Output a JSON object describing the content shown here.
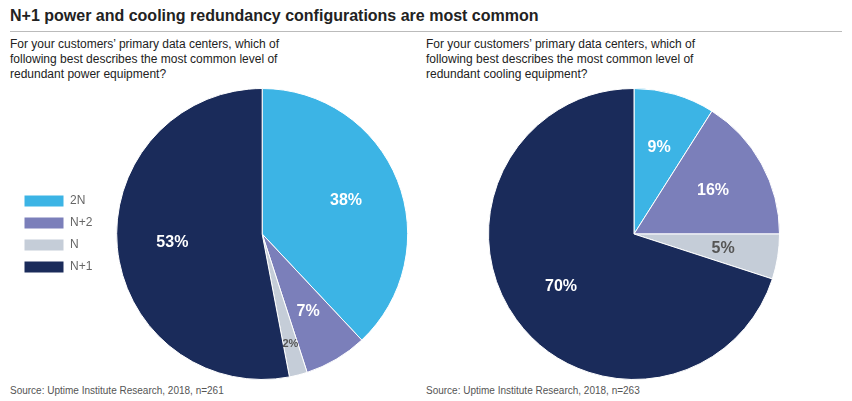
{
  "chart_data": [
    {
      "type": "pie",
      "title": "N+1 power and cooling redundancy configurations are most common",
      "subtitle": "For your customers’ primary data centers, which of\nfollowing best describes the most common level of\nredundant power equipment?",
      "annotations": [
        "Source: Uptime Institute Research, 2018, n=261"
      ],
      "categories": [
        "2N",
        "N+2",
        "N",
        "N+1"
      ],
      "values": [
        38,
        7,
        2,
        53
      ],
      "value_labels": [
        "38%",
        "7%",
        "2%",
        "53%"
      ],
      "colors": [
        "#3cb4e5",
        "#7b7fba",
        "#c5cdd8",
        "#1a2b5a"
      ],
      "data_labels": true,
      "legend": "left"
    },
    {
      "type": "pie",
      "subtitle": "For your customers’ primary data centers, which of\nfollowing best describes the most common level of\nredundant cooling equipment?",
      "annotations": [
        "Source: Uptime Institute Research, 2018, n=263"
      ],
      "categories": [
        "2N",
        "N+2",
        "N",
        "N+1"
      ],
      "values": [
        9,
        16,
        5,
        70
      ],
      "value_labels": [
        "9%",
        "16%",
        "5%",
        "70%"
      ],
      "colors": [
        "#3cb4e5",
        "#7b7fba",
        "#c5cdd8",
        "#1a2b5a"
      ],
      "data_labels": true
    }
  ]
}
